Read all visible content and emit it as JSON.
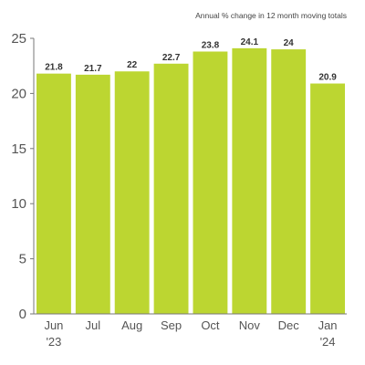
{
  "chart_data": {
    "type": "bar",
    "title": "",
    "subtitle": "Annual % change in 12 month moving totals",
    "xlabel": "",
    "ylabel": "",
    "categories": [
      {
        "line1": "Jun",
        "line2": "'23"
      },
      {
        "line1": "Jul",
        "line2": ""
      },
      {
        "line1": "Aug",
        "line2": ""
      },
      {
        "line1": "Sep",
        "line2": ""
      },
      {
        "line1": "Oct",
        "line2": ""
      },
      {
        "line1": "Nov",
        "line2": ""
      },
      {
        "line1": "Dec",
        "line2": ""
      },
      {
        "line1": "Jan",
        "line2": "'24"
      }
    ],
    "values": [
      21.8,
      21.7,
      22,
      22.7,
      23.8,
      24.1,
      24,
      20.9
    ],
    "value_labels": [
      "21.8",
      "21.7",
      "22",
      "22.7",
      "23.8",
      "24.1",
      "24",
      "20.9"
    ],
    "ylim": [
      0,
      25
    ],
    "yticks": [
      0,
      5,
      10,
      15,
      20,
      25
    ],
    "grid": false,
    "legend": "none",
    "colors": {
      "bar": "#bcd631",
      "axis": "#777777",
      "text": "#555555"
    }
  }
}
